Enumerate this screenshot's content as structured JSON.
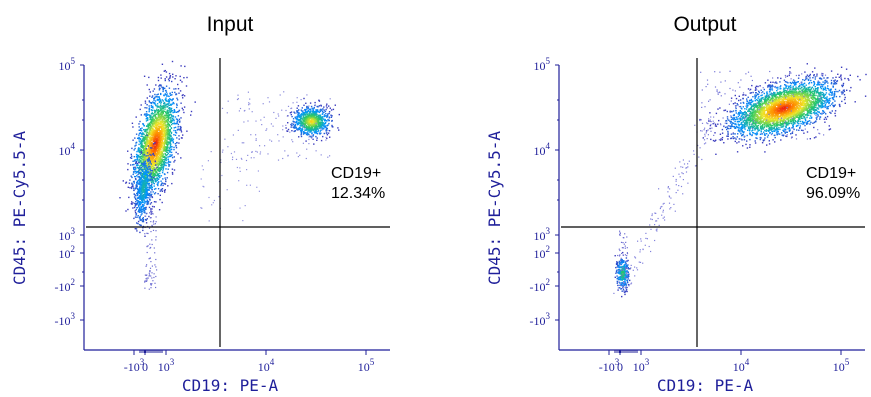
{
  "chart_data": [
    {
      "type": "scatter",
      "title": "Input",
      "xlabel": "CD19: PE-A",
      "ylabel": "CD45: PE-Cy5.5-A",
      "x_scale": "biexponential",
      "y_scale": "biexponential",
      "x_ticks": [
        {
          "label": "-10",
          "sup": "3"
        },
        {
          "label": "0",
          "sup": ""
        },
        {
          "label": "10",
          "sup": "3"
        },
        {
          "label": "10",
          "sup": "4"
        },
        {
          "label": "10",
          "sup": "5"
        }
      ],
      "y_ticks": [
        {
          "label": "10",
          "sup": "5"
        },
        {
          "label": "10",
          "sup": "4"
        },
        {
          "label": "10",
          "sup": "3"
        },
        {
          "label": "10",
          "sup": "2"
        },
        {
          "label": "-10",
          "sup": "2"
        },
        {
          "label": "-10",
          "sup": "3"
        }
      ],
      "gate": {
        "name": "CD19+",
        "percent": "12.34%"
      },
      "populations": [
        {
          "x_center": 600,
          "y_center": 12000,
          "extent": "CD19-negative, CD45-positive",
          "density": "high"
        },
        {
          "x_center": 28000,
          "y_center": 22000,
          "extent": "CD19-positive, CD45-positive",
          "density": "medium"
        }
      ]
    },
    {
      "type": "scatter",
      "title": "Output",
      "xlabel": "CD19: PE-A",
      "ylabel": "CD45: PE-Cy5.5-A",
      "x_scale": "biexponential",
      "y_scale": "biexponential",
      "x_ticks": [
        {
          "label": "-10",
          "sup": "3"
        },
        {
          "label": "0",
          "sup": ""
        },
        {
          "label": "10",
          "sup": "3"
        },
        {
          "label": "10",
          "sup": "4"
        },
        {
          "label": "10",
          "sup": "5"
        }
      ],
      "y_ticks": [
        {
          "label": "10",
          "sup": "5"
        },
        {
          "label": "10",
          "sup": "4"
        },
        {
          "label": "10",
          "sup": "3"
        },
        {
          "label": "10",
          "sup": "2"
        },
        {
          "label": "-10",
          "sup": "2"
        },
        {
          "label": "-10",
          "sup": "3"
        }
      ],
      "gate": {
        "name": "CD19+",
        "percent": "96.09%"
      },
      "populations": [
        {
          "x_center": 30000,
          "y_center": 35000,
          "extent": "CD19-positive, CD45-positive",
          "density": "high"
        },
        {
          "x_center": 200,
          "y_center": -100,
          "extent": "low CD45 debris",
          "density": "low"
        }
      ]
    }
  ]
}
